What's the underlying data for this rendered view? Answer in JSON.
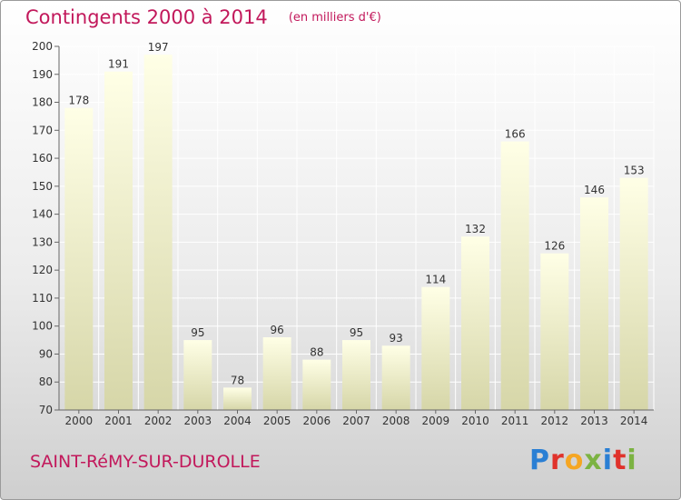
{
  "header": {
    "title": "Contingents 2000 à 2014",
    "subtitle": "(en milliers d'€)"
  },
  "footer": {
    "commune": "SAINT-RéMY-SUR-DUROLLE",
    "brand_letters": [
      "P",
      "r",
      "o",
      "x",
      "i",
      "t",
      "i"
    ],
    "brand_colors": [
      "#2a7fd4",
      "#e0322b",
      "#f5a623",
      "#7cb342",
      "#2a7fd4",
      "#e0322b",
      "#7cb342"
    ]
  },
  "chart_data": {
    "type": "bar",
    "categories": [
      "2000",
      "2001",
      "2002",
      "2003",
      "2004",
      "2005",
      "2006",
      "2007",
      "2008",
      "2009",
      "2010",
      "2011",
      "2012",
      "2013",
      "2014"
    ],
    "values": [
      178,
      191,
      197,
      95,
      78,
      96,
      88,
      95,
      93,
      114,
      132,
      166,
      126,
      146,
      153
    ],
    "ylim": [
      70,
      200
    ],
    "yticks": [
      70,
      80,
      90,
      100,
      110,
      120,
      130,
      140,
      150,
      160,
      170,
      180,
      190,
      200
    ],
    "grid": true,
    "bar_color_top": "#ffffe6",
    "bar_color_bottom": "#d6d6a8"
  }
}
